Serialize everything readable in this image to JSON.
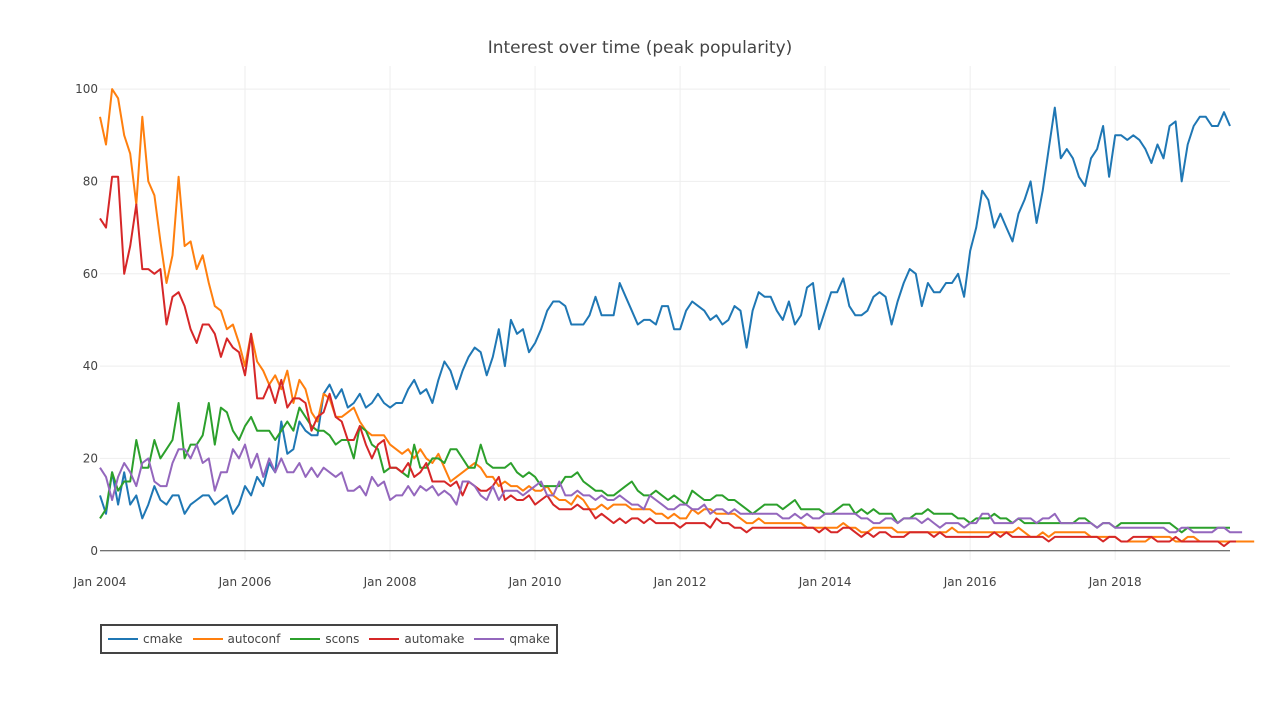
{
  "chart_data": {
    "type": "line",
    "title": "Interest over time (peak popularity)",
    "xlabel": "",
    "ylabel": "",
    "x_start": "2004-01",
    "x_end": "2019-08",
    "x_ticks": [
      "Jan 2004",
      "Jan 2006",
      "Jan 2008",
      "Jan 2010",
      "Jan 2012",
      "Jan 2014",
      "Jan 2016",
      "Jan 2018"
    ],
    "y_ticks": [
      0,
      20,
      40,
      60,
      80,
      100
    ],
    "ylim": [
      -2,
      105
    ],
    "grid": true,
    "legend_position": "bottom-left",
    "series": [
      {
        "name": "cmake",
        "color": "#1f77b4",
        "values": [
          12,
          8,
          17,
          10,
          17,
          10,
          12,
          7,
          10,
          14,
          11,
          10,
          12,
          12,
          8,
          10,
          11,
          12,
          12,
          10,
          11,
          12,
          8,
          10,
          14,
          12,
          16,
          14,
          19,
          17,
          28,
          21,
          22,
          28,
          26,
          25,
          25,
          34,
          36,
          33,
          35,
          31,
          32,
          34,
          31,
          32,
          34,
          32,
          31,
          32,
          32,
          35,
          37,
          34,
          35,
          32,
          37,
          41,
          39,
          35,
          39,
          42,
          44,
          43,
          38,
          42,
          48,
          40,
          50,
          47,
          48,
          43,
          45,
          48,
          52,
          54,
          54,
          53,
          49,
          49,
          49,
          51,
          55,
          51,
          51,
          51,
          58,
          55,
          52,
          49,
          50,
          50,
          49,
          53,
          53,
          48,
          48,
          52,
          54,
          53,
          52,
          50,
          51,
          49,
          50,
          53,
          52,
          44,
          52,
          56,
          55,
          55,
          52,
          50,
          54,
          49,
          51,
          57,
          58,
          48,
          52,
          56,
          56,
          59,
          53,
          51,
          51,
          52,
          55,
          56,
          55,
          49,
          54,
          58,
          61,
          60,
          53,
          58,
          56,
          56,
          58,
          58,
          60,
          55,
          65,
          70,
          78,
          76,
          70,
          73,
          70,
          67,
          73,
          76,
          80,
          71,
          78,
          87,
          96,
          85,
          87,
          85,
          81,
          79,
          85,
          87,
          92,
          81,
          90,
          90,
          89,
          90,
          89,
          87,
          84,
          88,
          85,
          92,
          93,
          80,
          88,
          92,
          94,
          94,
          92,
          92,
          95,
          92
        ]
      },
      {
        "name": "autoconf",
        "color": "#ff7f0e",
        "values": [
          94,
          88,
          100,
          98,
          90,
          86,
          75,
          94,
          80,
          77,
          67,
          58,
          64,
          81,
          66,
          67,
          61,
          64,
          58,
          53,
          52,
          48,
          49,
          45,
          40,
          47,
          41,
          39,
          36,
          38,
          35,
          39,
          32,
          37,
          35,
          30,
          28,
          34,
          33,
          29,
          29,
          30,
          31,
          28,
          26,
          25,
          25,
          25,
          23,
          22,
          21,
          22,
          20,
          22,
          20,
          19,
          21,
          18,
          15,
          16,
          17,
          18,
          19,
          18,
          16,
          16,
          14,
          15,
          14,
          14,
          13,
          14,
          13,
          13,
          14,
          12,
          11,
          11,
          10,
          12,
          11,
          9,
          9,
          10,
          9,
          10,
          10,
          10,
          9,
          9,
          9,
          9,
          8,
          8,
          7,
          8,
          7,
          7,
          9,
          8,
          9,
          9,
          8,
          8,
          8,
          8,
          7,
          6,
          6,
          7,
          6,
          6,
          6,
          6,
          6,
          6,
          6,
          5,
          5,
          5,
          5,
          5,
          5,
          6,
          5,
          5,
          4,
          4,
          5,
          5,
          5,
          5,
          4,
          4,
          4,
          4,
          4,
          4,
          4,
          4,
          4,
          5,
          4,
          4,
          4,
          4,
          4,
          4,
          4,
          4,
          4,
          4,
          5,
          4,
          3,
          3,
          4,
          3,
          4,
          4,
          4,
          4,
          4,
          4,
          3,
          3,
          3,
          3,
          3,
          2,
          2,
          2,
          2,
          2,
          3,
          3,
          3,
          3,
          2,
          2,
          3,
          3,
          2,
          2,
          2,
          2,
          2,
          2,
          2,
          2,
          2,
          2
        ]
      },
      {
        "name": "scons",
        "color": "#2ca02c",
        "values": [
          7,
          9,
          17,
          13,
          15,
          15,
          24,
          18,
          18,
          24,
          20,
          22,
          24,
          32,
          20,
          23,
          23,
          25,
          32,
          23,
          31,
          30,
          26,
          24,
          27,
          29,
          26,
          26,
          26,
          24,
          26,
          28,
          26,
          31,
          29,
          27,
          26,
          26,
          25,
          23,
          24,
          24,
          20,
          27,
          26,
          23,
          22,
          17,
          18,
          18,
          17,
          16,
          23,
          18,
          18,
          20,
          20,
          19,
          22,
          22,
          20,
          18,
          18,
          23,
          19,
          18,
          18,
          18,
          19,
          17,
          16,
          17,
          16,
          14,
          14,
          14,
          14,
          16,
          16,
          17,
          15,
          14,
          13,
          13,
          12,
          12,
          13,
          14,
          15,
          13,
          12,
          12,
          13,
          12,
          11,
          12,
          11,
          10,
          13,
          12,
          11,
          11,
          12,
          12,
          11,
          11,
          10,
          9,
          8,
          9,
          10,
          10,
          10,
          9,
          10,
          11,
          9,
          9,
          9,
          9,
          8,
          8,
          9,
          10,
          10,
          8,
          9,
          8,
          9,
          8,
          8,
          8,
          6,
          7,
          7,
          8,
          8,
          9,
          8,
          8,
          8,
          8,
          7,
          7,
          6,
          7,
          7,
          7,
          8,
          7,
          7,
          6,
          7,
          6,
          6,
          6,
          6,
          6,
          6,
          6,
          6,
          6,
          7,
          7,
          6,
          5,
          6,
          6,
          5,
          6,
          6,
          6,
          6,
          6,
          6,
          6,
          6,
          6,
          5,
          4,
          5,
          5,
          5,
          5,
          5,
          5,
          5,
          5
        ]
      },
      {
        "name": "automake",
        "color": "#d62728",
        "values": [
          72,
          70,
          81,
          81,
          60,
          66,
          75,
          61,
          61,
          60,
          61,
          49,
          55,
          56,
          53,
          48,
          45,
          49,
          49,
          47,
          42,
          46,
          44,
          43,
          38,
          47,
          33,
          33,
          36,
          32,
          37,
          31,
          33,
          33,
          32,
          26,
          29,
          30,
          34,
          29,
          28,
          24,
          24,
          27,
          23,
          20,
          23,
          24,
          18,
          18,
          17,
          19,
          16,
          17,
          19,
          15,
          15,
          15,
          14,
          15,
          12,
          15,
          14,
          13,
          13,
          14,
          16,
          11,
          12,
          11,
          11,
          12,
          10,
          11,
          12,
          10,
          9,
          9,
          9,
          10,
          9,
          9,
          7,
          8,
          7,
          6,
          7,
          6,
          7,
          7,
          6,
          7,
          6,
          6,
          6,
          6,
          5,
          6,
          6,
          6,
          6,
          5,
          7,
          6,
          6,
          5,
          5,
          4,
          5,
          5,
          5,
          5,
          5,
          5,
          5,
          5,
          5,
          5,
          5,
          4,
          5,
          4,
          4,
          5,
          5,
          4,
          3,
          4,
          3,
          4,
          4,
          3,
          3,
          3,
          4,
          4,
          4,
          4,
          3,
          4,
          3,
          3,
          3,
          3,
          3,
          3,
          3,
          3,
          4,
          3,
          4,
          3,
          3,
          3,
          3,
          3,
          3,
          2,
          3,
          3,
          3,
          3,
          3,
          3,
          3,
          3,
          2,
          3,
          3,
          2,
          2,
          3,
          3,
          3,
          3,
          2,
          2,
          2,
          3,
          2,
          2,
          2,
          2,
          2,
          2,
          2,
          1,
          2,
          2
        ]
      },
      {
        "name": "qmake",
        "color": "#9467bd",
        "values": [
          18,
          16,
          11,
          16,
          19,
          17,
          14,
          19,
          20,
          15,
          14,
          14,
          19,
          22,
          22,
          20,
          23,
          19,
          20,
          13,
          17,
          17,
          22,
          20,
          23,
          18,
          21,
          16,
          20,
          17,
          20,
          17,
          17,
          19,
          16,
          18,
          16,
          18,
          17,
          16,
          17,
          13,
          13,
          14,
          12,
          16,
          14,
          15,
          11,
          12,
          12,
          14,
          12,
          14,
          13,
          14,
          12,
          13,
          12,
          10,
          15,
          15,
          14,
          12,
          11,
          14,
          11,
          13,
          13,
          13,
          12,
          13,
          14,
          15,
          12,
          12,
          15,
          12,
          12,
          13,
          12,
          12,
          11,
          12,
          11,
          11,
          12,
          11,
          10,
          10,
          9,
          12,
          11,
          10,
          9,
          9,
          10,
          10,
          9,
          9,
          10,
          8,
          9,
          9,
          8,
          9,
          8,
          8,
          8,
          8,
          8,
          8,
          8,
          7,
          7,
          8,
          7,
          8,
          7,
          7,
          8,
          8,
          8,
          8,
          8,
          8,
          7,
          7,
          6,
          6,
          7,
          7,
          6,
          7,
          7,
          7,
          6,
          7,
          6,
          5,
          6,
          6,
          6,
          5,
          6,
          6,
          8,
          8,
          6,
          6,
          6,
          6,
          7,
          7,
          7,
          6,
          7,
          7,
          8,
          6,
          6,
          6,
          6,
          6,
          6,
          5,
          6,
          6,
          5,
          5,
          5,
          5,
          5,
          5,
          5,
          5,
          5,
          4,
          4,
          5,
          5,
          4,
          4,
          4,
          4,
          5,
          5,
          4,
          4,
          4
        ]
      }
    ]
  }
}
